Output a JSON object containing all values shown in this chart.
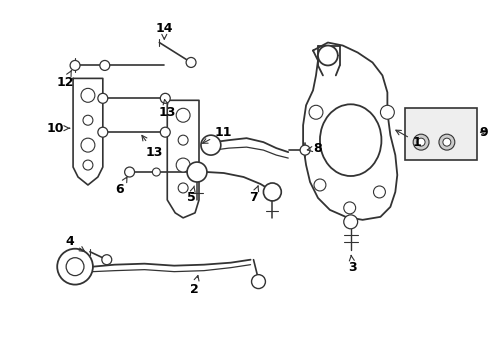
{
  "bg_color": "#ffffff",
  "line_color": "#333333",
  "text_color": "#000000",
  "figsize": [
    4.89,
    3.6
  ],
  "dpi": 100
}
